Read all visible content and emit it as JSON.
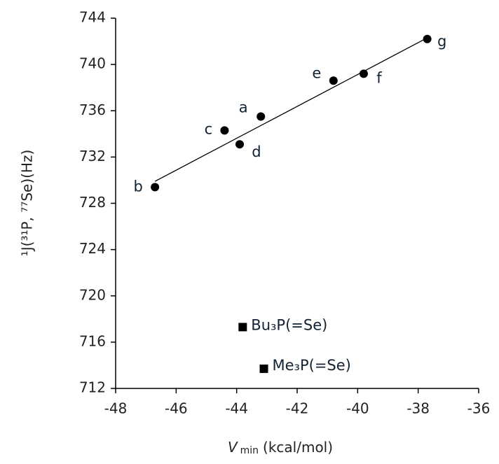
{
  "chart_data": {
    "type": "scatter",
    "x_label": {
      "symbol": "V",
      "subscript": "min",
      "unit": "(kcal/mol)"
    },
    "y_label": "¹J(³¹P, ⁷⁷Se)(Hz)",
    "xlim": [
      -48,
      -36
    ],
    "xticks": [
      -48,
      -46,
      -44,
      -42,
      -40,
      -38,
      -36
    ],
    "ylim": [
      712,
      744
    ],
    "yticks": [
      712,
      716,
      720,
      724,
      728,
      732,
      736,
      740,
      744
    ],
    "series": [
      {
        "marker": "circle",
        "color": "#000000",
        "x": [
          -43.2,
          -46.7,
          -44.4,
          -43.9,
          -40.8,
          -39.8,
          -37.7
        ],
        "values": [
          735.5,
          729.4,
          734.3,
          733.1,
          738.6,
          739.2,
          742.2
        ],
        "labels": [
          "a",
          "b",
          "c",
          "d",
          "e",
          "f",
          "g"
        ]
      },
      {
        "marker": "square",
        "color": "#000000",
        "x": [
          -43.8,
          -43.1
        ],
        "values": [
          717.3,
          713.7
        ],
        "labels": [
          "Bu₃P(=Se)",
          "Me₃P(=Se)"
        ]
      }
    ],
    "trendline": {
      "x": [
        -46.7,
        -37.7
      ],
      "values": [
        729.9,
        742.3
      ],
      "color": "#000000"
    }
  }
}
